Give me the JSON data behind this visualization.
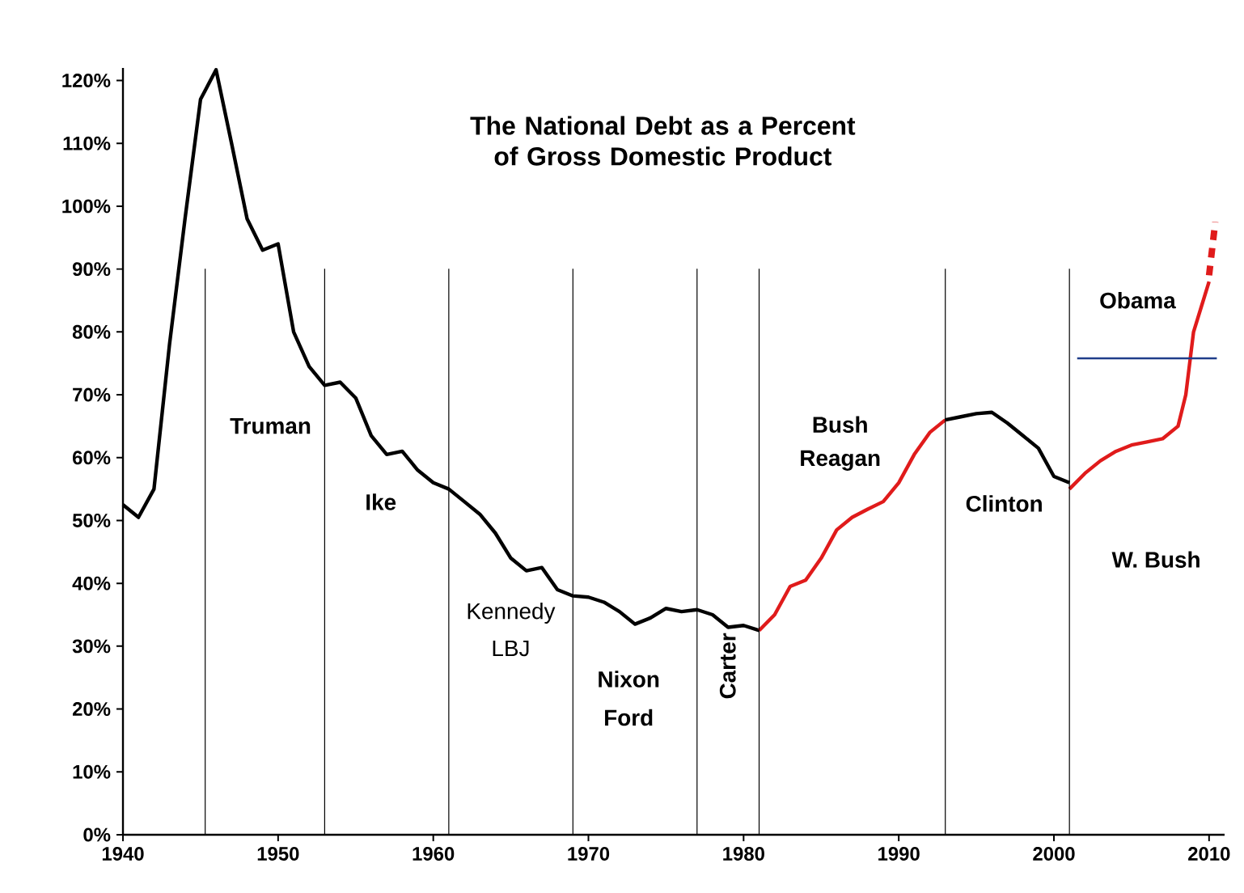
{
  "chart_data": {
    "type": "line",
    "title": "The National Debt as a Percent of Gross Domestic Product",
    "xlim": [
      1940,
      2011
    ],
    "ylim": [
      0,
      122
    ],
    "xticks": [
      1940,
      1950,
      1960,
      1970,
      1980,
      1990,
      2000,
      2010
    ],
    "yticks": [
      {
        "value": 0,
        "label": "0%"
      },
      {
        "value": 10,
        "label": "10%"
      },
      {
        "value": 20,
        "label": "20%"
      },
      {
        "value": 30,
        "label": "30%"
      },
      {
        "value": 40,
        "label": "40%"
      },
      {
        "value": 50,
        "label": "50%"
      },
      {
        "value": 60,
        "label": "60%"
      },
      {
        "value": 70,
        "label": "70%"
      },
      {
        "value": 80,
        "label": "80%"
      },
      {
        "value": 90,
        "label": "90%"
      },
      {
        "value": 100,
        "label": "100%"
      },
      {
        "value": 110,
        "label": "110%"
      },
      {
        "value": 120,
        "label": "120%"
      }
    ],
    "marker": "none",
    "series": [
      {
        "color": "#000000",
        "x": [
          1940,
          1941,
          1942,
          1943,
          1944,
          1945,
          1946,
          1947,
          1948,
          1949,
          1950,
          1951,
          1952,
          1953,
          1954,
          1955,
          1956,
          1957,
          1958,
          1959,
          1960,
          1961,
          1962,
          1963,
          1964,
          1965,
          1966,
          1967,
          1968,
          1969,
          1970,
          1971,
          1972,
          1973,
          1974,
          1975,
          1976,
          1977,
          1978,
          1979,
          1980,
          1981,
          1987,
          1993,
          1994,
          1995,
          1996,
          1997,
          1998,
          1999,
          2000,
          2001
        ],
        "values": [
          52.5,
          50.5,
          55,
          78,
          98,
          117,
          121.7,
          110,
          98,
          93,
          94,
          80,
          74.5,
          71.5,
          72,
          69.5,
          63.5,
          60.5,
          61,
          58,
          56,
          55,
          53,
          51,
          48,
          44,
          42,
          42.5,
          39,
          38,
          37.8,
          37,
          35.5,
          33.5,
          34.5,
          36,
          35.5,
          35.8,
          35,
          33,
          33.3,
          32.5,
          null,
          66,
          66.5,
          67,
          67.2,
          65.5,
          63.5,
          61.5,
          57,
          56
        ]
      },
      {
        "color": "#e01b1b",
        "x": [
          1981,
          1982,
          1983,
          1984,
          1985,
          1986,
          1987,
          1988,
          1989,
          1990,
          1991,
          1992,
          1993,
          1997,
          2001,
          2002,
          2003,
          2004,
          2005,
          2006,
          2007,
          2008,
          2008.5,
          2009,
          2009.5,
          2010
        ],
        "values": [
          32.5,
          35,
          39.5,
          40.5,
          44,
          48.5,
          50.5,
          51.8,
          53,
          56,
          60.5,
          64,
          66,
          null,
          55,
          57.5,
          59.5,
          61,
          62,
          62.5,
          63,
          65,
          70,
          80,
          84,
          88
        ]
      },
      {
        "color": "#e01b1b",
        "line_style": "dashed",
        "x": [
          2010,
          2010.4
        ],
        "values": [
          89,
          97.5
        ]
      },
      {
        "color": "#1f3d8a",
        "x": [
          2001.5,
          2010.5
        ],
        "values": [
          75.8,
          75.8
        ]
      }
    ],
    "ref_lines": [
      {
        "axis": "x",
        "value": 1945.3
      },
      {
        "axis": "x",
        "value": 1953
      },
      {
        "axis": "x",
        "value": 1961
      },
      {
        "axis": "x",
        "value": 1969
      },
      {
        "axis": "x",
        "value": 1977
      },
      {
        "axis": "x",
        "value": 1981
      },
      {
        "axis": "x",
        "value": 1993
      },
      {
        "axis": "x",
        "value": 2001
      }
    ],
    "annotations": [
      "Truman",
      "Ike",
      "Kennedy",
      "LBJ",
      "Nixon",
      "Ford",
      "Carter",
      "Bush",
      "Reagan",
      "Clinton",
      "W. Bush",
      "Obama"
    ]
  }
}
